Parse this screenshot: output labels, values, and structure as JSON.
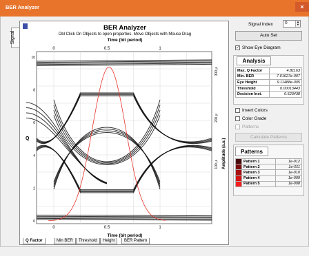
{
  "window": {
    "title": "BER Analyzer",
    "close_glyph": "×"
  },
  "side_tab": "Signal",
  "plot": {
    "title": "BER Analyzer",
    "subtitle": "Dbl Click On Objects to open properties.  Move Objects with Mouse Drag",
    "x_top_title": "Time (bit period)",
    "x_bottom_title": "Time (bit period)",
    "y_left_title": "Q",
    "y_right_title": "Amplitude (a.u.)",
    "x_top_ticks": [
      "0",
      "0.5",
      "1"
    ],
    "x_bottom_ticks": [
      "0",
      "0.5",
      "1"
    ],
    "y_left_ticks": [
      "10",
      "8",
      "6",
      "4",
      "2",
      "0"
    ],
    "y_right_ticks": [
      "300 µ",
      "200 µ",
      "100 µ"
    ],
    "eye_color": "#111111",
    "q_curve_color": "#e8322a"
  },
  "bottom_tabs": [
    "Q Factor",
    "Min BER",
    "Threshold",
    "Height",
    "BER Pattern"
  ],
  "signal_index": {
    "label": "Signal Index",
    "value": "0"
  },
  "auto_set_label": "Auto Set",
  "show_eye": {
    "label": "Show Eye Diagram",
    "checked": true
  },
  "analysis": {
    "title": "Analysis",
    "rows": [
      {
        "key": "Max. Q Factor",
        "value": "4.81163"
      },
      {
        "key": "Min. BER",
        "value": "7.01627e-007"
      },
      {
        "key": "Eye Height",
        "value": "9.11488e-005"
      },
      {
        "key": "Threshold",
        "value": "0.00013443"
      },
      {
        "key": "Decision Inst.",
        "value": "0.523438"
      }
    ]
  },
  "options": [
    {
      "label": "Invert Colors",
      "checked": false,
      "enabled": true
    },
    {
      "label": "Color Grade",
      "checked": false,
      "enabled": true
    },
    {
      "label": "Patterns",
      "checked": false,
      "enabled": false
    }
  ],
  "calc_patterns_label": "Calculate Patterns",
  "patterns": {
    "title": "Patterns",
    "rows": [
      {
        "name": "Pattern 1",
        "value": "1e-012",
        "color": "#4a0a0a"
      },
      {
        "name": "Pattern 2",
        "value": "1e-011",
        "color": "#7a0c0c"
      },
      {
        "name": "Pattern 3",
        "value": "1e-010",
        "color": "#a80f0f"
      },
      {
        "name": "Pattern 4",
        "value": "1e-009",
        "color": "#d21414"
      },
      {
        "name": "Pattern 5",
        "value": "1e-008",
        "color": "#f41b1b"
      }
    ]
  }
}
